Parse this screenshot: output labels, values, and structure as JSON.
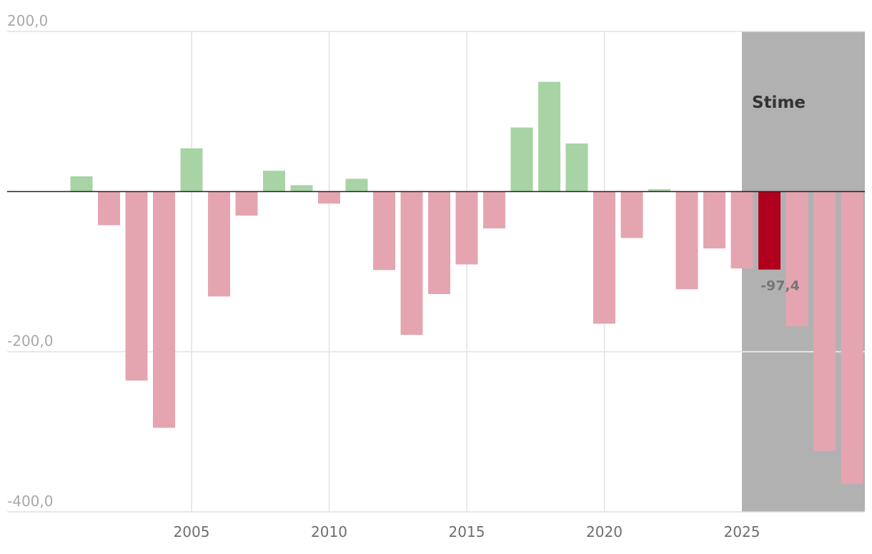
{
  "chart_data": {
    "type": "bar",
    "x": [
      2001,
      2002,
      2003,
      2004,
      2005,
      2006,
      2007,
      2008,
      2009,
      2010,
      2011,
      2012,
      2013,
      2014,
      2015,
      2016,
      2017,
      2018,
      2019,
      2020,
      2021,
      2022,
      2023,
      2024,
      2025,
      2026,
      2027,
      2028,
      2029
    ],
    "values": [
      19,
      -42,
      -236,
      -295,
      54,
      -131,
      -30,
      26,
      8,
      -15,
      16,
      -98,
      -179,
      -128,
      -91,
      -46,
      80,
      137,
      60,
      -165,
      -58,
      3,
      -122,
      -71,
      -96,
      -97.4,
      -168,
      -324,
      -365
    ],
    "ylim": [
      -400,
      200
    ],
    "yticks": [
      200,
      -200,
      -400
    ],
    "ytick_labels": [
      "200,0",
      "-200,0",
      "-400,0"
    ],
    "xticks": [
      2005,
      2010,
      2015,
      2020,
      2025
    ],
    "xtick_labels": [
      "2005",
      "2010",
      "2015",
      "2020",
      "2025"
    ],
    "highlight": {
      "x": 2026,
      "label": "-97,4"
    },
    "estimate_region": {
      "from": 2025,
      "label": "Stime"
    },
    "grid": true,
    "colors": {
      "positive": "#a8d3a5",
      "negative": "#e4a5b1",
      "highlight": "#b0001e",
      "estimate_bg": "#b1b1b1",
      "grid": "#e2e2e2",
      "zero_line": "#222222"
    }
  }
}
